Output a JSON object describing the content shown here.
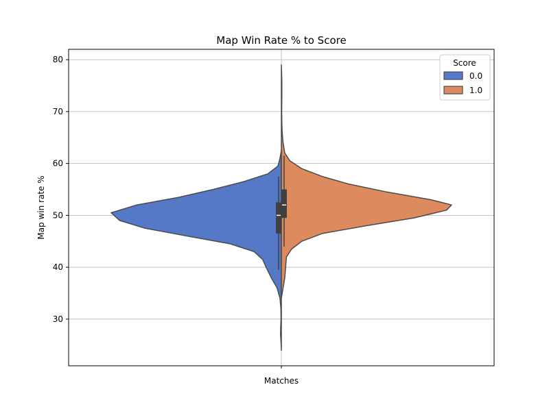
{
  "chart_data": {
    "type": "violin",
    "title": "Map Win Rate % to Score",
    "xlabel": "",
    "ylabel": "Map win rate %",
    "categories": [
      "Matches"
    ],
    "ylim": [
      21,
      82
    ],
    "yticks": [
      30,
      40,
      50,
      60,
      70,
      80
    ],
    "grid": true,
    "legend": {
      "title": "Score",
      "placement": "top-right"
    },
    "split": true,
    "series": [
      {
        "name": "0.0",
        "color": "#5579c6",
        "side": "left",
        "density": [
          [
            24.0,
            0.0
          ],
          [
            25.5,
            0.002
          ],
          [
            27.0,
            0.005
          ],
          [
            28.5,
            0.004
          ],
          [
            30.0,
            0.002
          ],
          [
            32.0,
            0.003
          ],
          [
            34.0,
            0.008
          ],
          [
            36.0,
            0.025
          ],
          [
            38.0,
            0.06
          ],
          [
            40.0,
            0.09
          ],
          [
            41.5,
            0.11
          ],
          [
            43.0,
            0.16
          ],
          [
            44.5,
            0.3
          ],
          [
            46.0,
            0.55
          ],
          [
            47.5,
            0.8
          ],
          [
            49.0,
            0.95
          ],
          [
            50.5,
            1.0
          ],
          [
            52.0,
            0.85
          ],
          [
            53.5,
            0.6
          ],
          [
            55.0,
            0.4
          ],
          [
            56.5,
            0.22
          ],
          [
            58.0,
            0.08
          ],
          [
            59.5,
            0.02
          ],
          [
            61.0,
            0.008
          ],
          [
            62.5,
            0.0
          ]
        ],
        "box": {
          "q1": 46.5,
          "median": 50.0,
          "q3": 52.5,
          "whisker_low": 39.5,
          "whisker_high": 57.5
        }
      },
      {
        "name": "1.0",
        "color": "#dd8a5e",
        "side": "right",
        "density": [
          [
            34.0,
            0.0
          ],
          [
            36.0,
            0.01
          ],
          [
            38.0,
            0.02
          ],
          [
            40.0,
            0.025
          ],
          [
            42.0,
            0.03
          ],
          [
            43.5,
            0.06
          ],
          [
            45.0,
            0.12
          ],
          [
            46.5,
            0.24
          ],
          [
            48.0,
            0.5
          ],
          [
            49.5,
            0.78
          ],
          [
            51.0,
            0.97
          ],
          [
            52.0,
            1.0
          ],
          [
            53.0,
            0.88
          ],
          [
            54.5,
            0.62
          ],
          [
            56.0,
            0.4
          ],
          [
            57.5,
            0.24
          ],
          [
            59.0,
            0.12
          ],
          [
            60.5,
            0.05
          ],
          [
            62.0,
            0.02
          ],
          [
            64.0,
            0.01
          ],
          [
            66.0,
            0.005
          ],
          [
            68.0,
            0.003
          ],
          [
            70.0,
            0.002
          ],
          [
            73.0,
            0.003
          ],
          [
            76.0,
            0.003
          ],
          [
            79.0,
            0.0
          ]
        ],
        "box": {
          "q1": 49.5,
          "median": 52.0,
          "q3": 55.0,
          "whisker_low": 44.0,
          "whisker_high": 61.5
        }
      }
    ]
  }
}
